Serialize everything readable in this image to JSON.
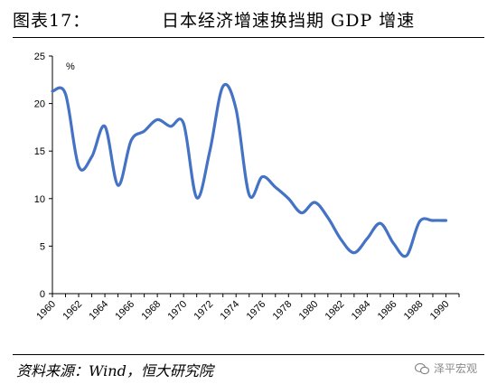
{
  "title": {
    "label": "图表17：",
    "text": "日本经济增速换挡期 GDP 增速"
  },
  "source": "资料来源：Wind，恒大研究院",
  "watermark": "泽平宏观",
  "colors": {
    "line": "#4472C4"
  },
  "chart_data": {
    "type": "line",
    "unit_label": "%",
    "ylim": [
      0,
      25
    ],
    "yticks": [
      0,
      5,
      10,
      15,
      20,
      25
    ],
    "xlim": [
      1960,
      1991
    ],
    "xticks": [
      1960,
      1962,
      1964,
      1966,
      1968,
      1970,
      1972,
      1974,
      1976,
      1978,
      1980,
      1982,
      1984,
      1986,
      1988,
      1990
    ],
    "grid": false,
    "legend": "none",
    "series": [
      {
        "x": [
          1960,
          1961,
          1962,
          1963,
          1964,
          1965,
          1966,
          1967,
          1968,
          1969,
          1970,
          1971,
          1972,
          1973,
          1974,
          1975,
          1976,
          1977,
          1978,
          1979,
          1980,
          1981,
          1982,
          1983,
          1984,
          1985,
          1986,
          1987,
          1988,
          1989,
          1990
        ],
        "values": [
          21.3,
          21.0,
          13.4,
          14.4,
          17.6,
          11.4,
          16.1,
          17.1,
          18.3,
          17.6,
          17.9,
          10.1,
          15.0,
          21.8,
          19.4,
          10.4,
          12.3,
          11.2,
          10.0,
          8.5,
          9.6,
          8.0,
          5.7,
          4.3,
          5.8,
          7.4,
          5.3,
          4.0,
          7.6,
          7.7,
          7.7
        ]
      }
    ]
  }
}
